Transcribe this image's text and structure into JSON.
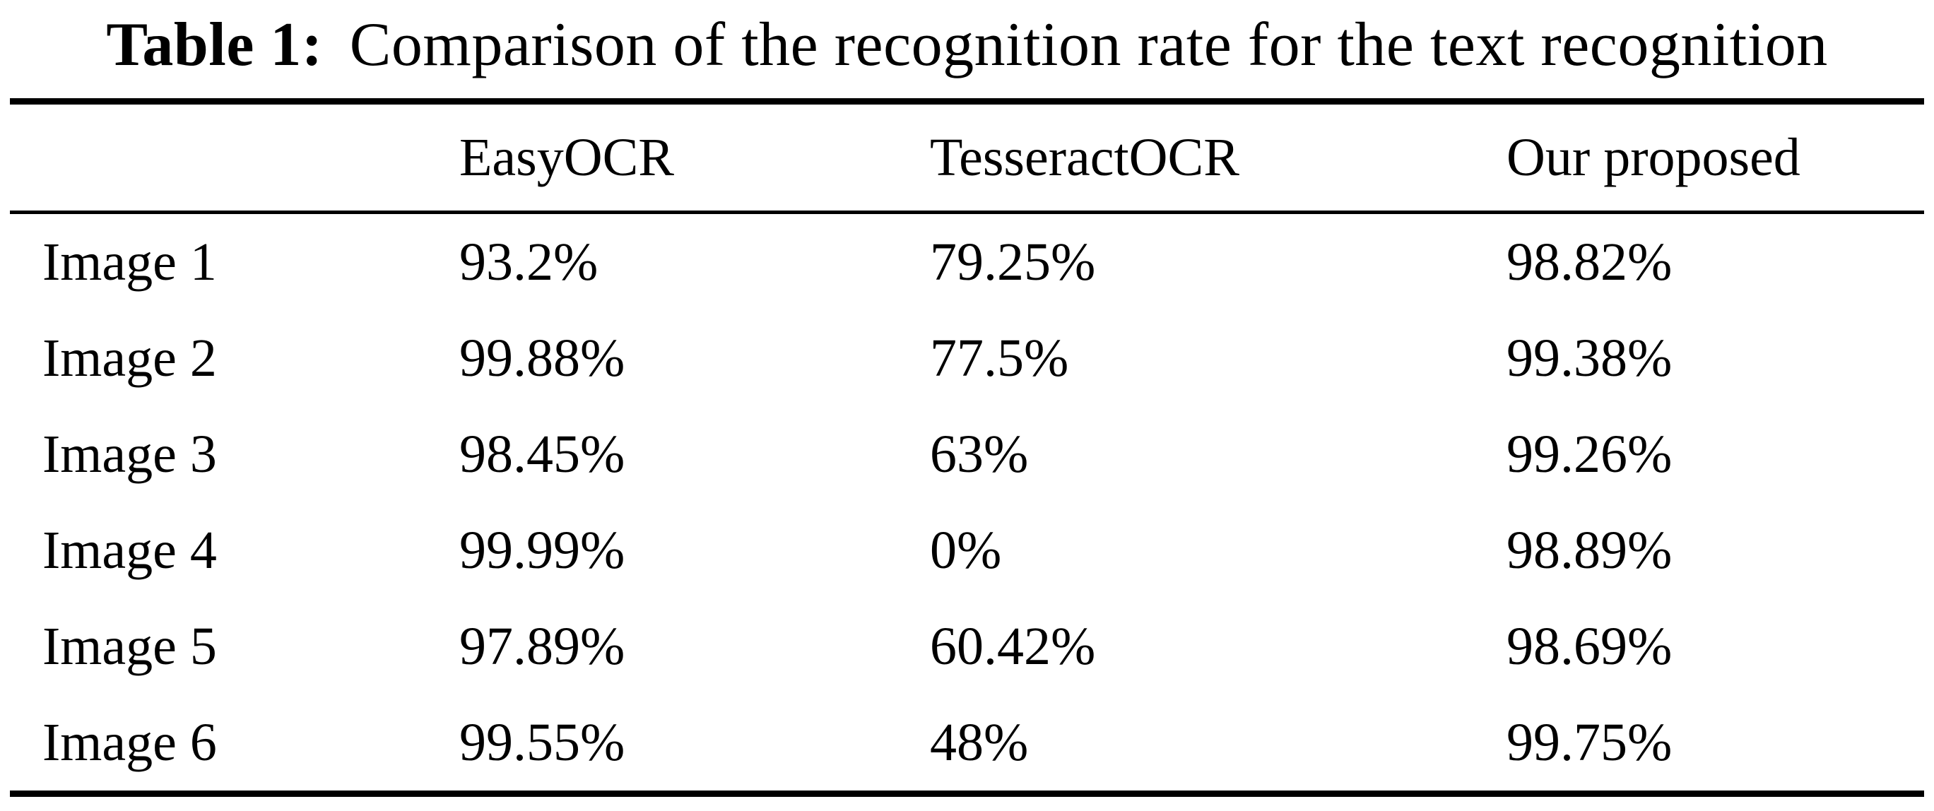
{
  "caption": {
    "label": "Table 1:",
    "text": "Comparison of the recognition rate for the text recognition"
  },
  "table": {
    "columns": [
      "",
      "EasyOCR",
      "TesseractOCR",
      "Our proposed"
    ],
    "rows": [
      {
        "label": "Image 1",
        "values": [
          "93.2%",
          "79.25%",
          "98.82%"
        ]
      },
      {
        "label": "Image 2",
        "values": [
          "99.88%",
          "77.5%",
          "99.38%"
        ]
      },
      {
        "label": "Image 3",
        "values": [
          "98.45%",
          "63%",
          "99.26%"
        ]
      },
      {
        "label": "Image 4",
        "values": [
          "99.99%",
          "0%",
          "98.89%"
        ]
      },
      {
        "label": "Image 5",
        "values": [
          "97.89%",
          "60.42%",
          "98.69%"
        ]
      },
      {
        "label": "Image 6",
        "values": [
          "99.55%",
          "48%",
          "99.75%"
        ]
      }
    ]
  },
  "colors": {
    "text": "#000000",
    "background": "#ffffff",
    "rule": "#000000"
  },
  "chart_data": {
    "type": "table",
    "title": "Table 1: Comparison of the recognition rate for the text recognition",
    "columns": [
      "",
      "EasyOCR",
      "TesseractOCR",
      "Our proposed"
    ],
    "categories": [
      "Image 1",
      "Image 2",
      "Image 3",
      "Image 4",
      "Image 5",
      "Image 6"
    ],
    "series": [
      {
        "name": "EasyOCR",
        "values": [
          93.2,
          99.88,
          98.45,
          99.99,
          97.89,
          99.55
        ]
      },
      {
        "name": "TesseractOCR",
        "values": [
          79.25,
          77.5,
          63,
          0,
          60.42,
          48
        ]
      },
      {
        "name": "Our proposed",
        "values": [
          98.82,
          99.38,
          99.26,
          98.89,
          98.69,
          99.75
        ]
      }
    ],
    "unit": "%"
  }
}
